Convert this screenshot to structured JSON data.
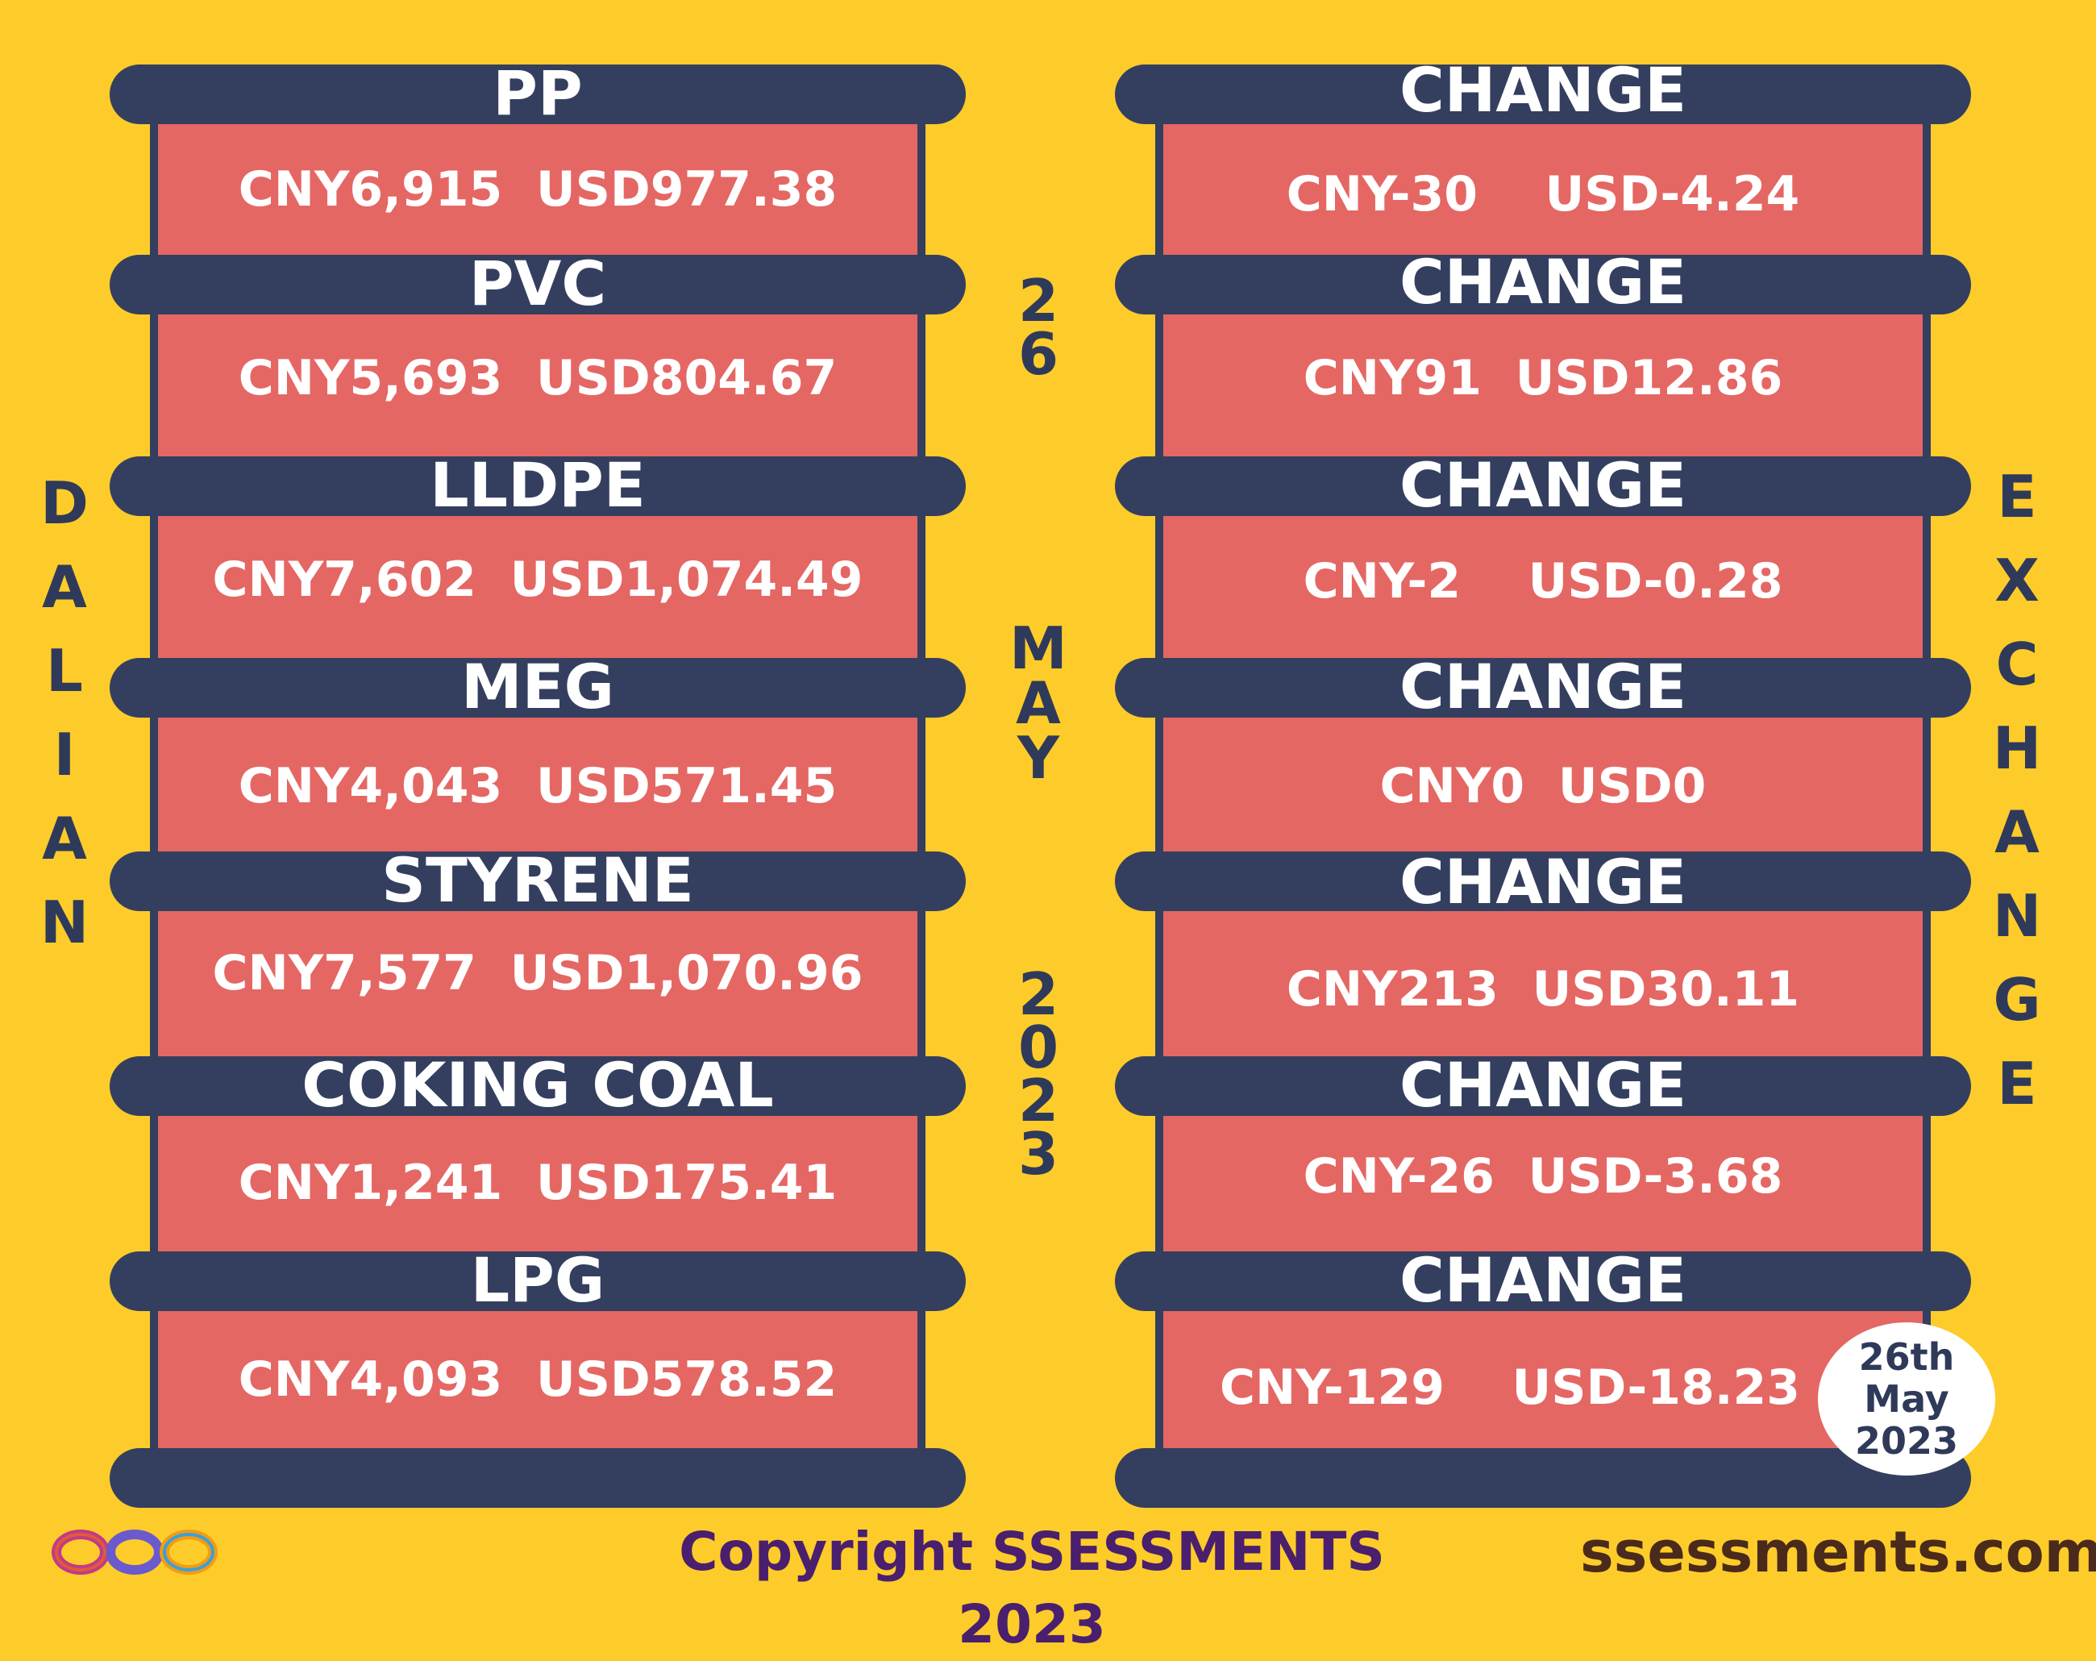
{
  "left_column": {
    "vertical_label": [
      "D",
      "A",
      "L",
      "I",
      "A",
      "N"
    ],
    "rows": [
      {
        "label": "PP",
        "value": "CNY6,915  USD977.38"
      },
      {
        "label": "PVC",
        "value": "CNY5,693  USD804.67"
      },
      {
        "label": "LLDPE",
        "value": "CNY7,602  USD1,074.49"
      },
      {
        "label": "MEG",
        "value": "CNY4,043  USD571.45"
      },
      {
        "label": "STYRENE",
        "value": "CNY7,577  USD1,070.96"
      },
      {
        "label": "COKING COAL",
        "value": "CNY1,241  USD175.41"
      },
      {
        "label": "LPG",
        "value": "CNY4,093  USD578.52"
      }
    ]
  },
  "right_column": {
    "vertical_label": [
      "E",
      "X",
      "C",
      "H",
      "A",
      "N",
      "G",
      "E"
    ],
    "rows": [
      {
        "label": "CHANGE",
        "value": "CNY-30    USD-4.24"
      },
      {
        "label": "CHANGE",
        "value": "CNY91  USD12.86"
      },
      {
        "label": "CHANGE",
        "value": "CNY-2    USD-0.28"
      },
      {
        "label": "CHANGE",
        "value": "CNY0  USD0"
      },
      {
        "label": "CHANGE",
        "value": "CNY213  USD30.11"
      },
      {
        "label": "CHANGE",
        "value": "CNY-26  USD-3.68"
      },
      {
        "label": "CHANGE",
        "value": "CNY-129    USD-18.23"
      }
    ]
  },
  "center_date": {
    "day": [
      "2",
      "6"
    ],
    "month": [
      "M",
      "A",
      "Y"
    ],
    "year": [
      "2",
      "0",
      "2",
      "3"
    ]
  },
  "stamp": {
    "line1": "26th",
    "line2": "May",
    "line3": "2023"
  },
  "footer": {
    "copyright": "Copyright SSESSMENTS 2023",
    "url": "ssessments.com"
  },
  "colors": {
    "background": "#fdcc2a",
    "bar": "#343f5f",
    "panel": "#e46764",
    "text": "#ffffff"
  },
  "icons": {
    "logo": "infinity-loops-logo-icon"
  }
}
